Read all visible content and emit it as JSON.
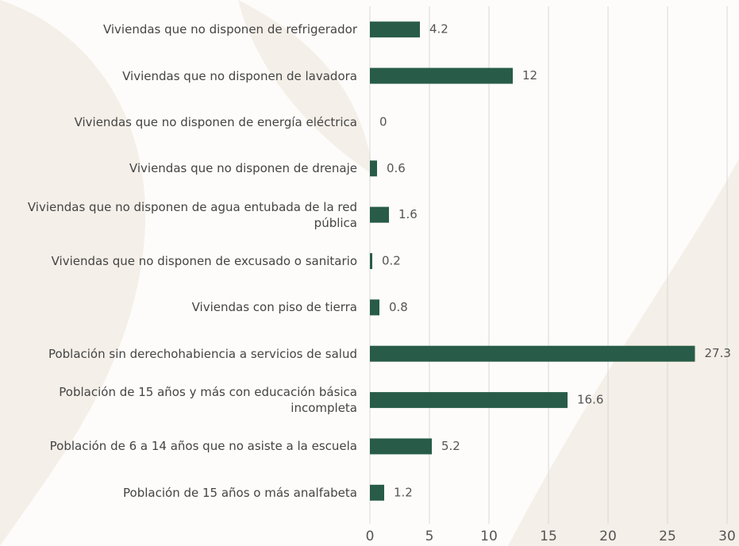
{
  "chart_data": {
    "type": "barh",
    "categories": [
      "Viviendas que no disponen de refrigerador",
      "Viviendas que no disponen de lavadora",
      "Viviendas que no disponen de energía eléctrica",
      "Viviendas que no disponen de drenaje",
      "Viviendas que no disponen de agua entubada de la red pública",
      "Viviendas que no disponen de excusado o sanitario",
      "Viviendas con piso de tierra",
      "Población sin derechohabiencia a servicios de salud",
      "Población de 15 años y más con educación básica incompleta",
      "Población de 6 a 14 años que no asiste a la escuela",
      "Población de 15 años o más analfabeta"
    ],
    "values": [
      4.2,
      12,
      0,
      0.6,
      1.6,
      0.2,
      0.8,
      27.3,
      16.6,
      5.2,
      1.2
    ],
    "color": "#285c48",
    "xlim": [
      0,
      30
    ],
    "xticks": [
      0,
      5,
      10,
      15,
      20,
      25,
      30
    ],
    "grid": true
  }
}
